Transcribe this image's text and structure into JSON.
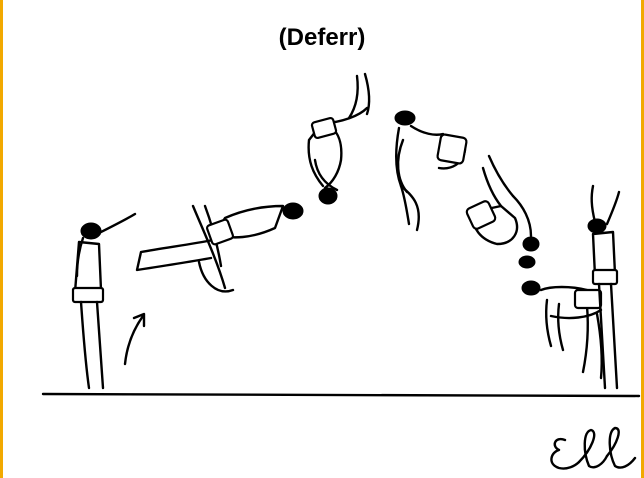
{
  "title": "(Deferr)",
  "signature": "Ell",
  "colors": {
    "frame_border": "#f2a900",
    "ink": "#000000",
    "background": "#ffffff"
  },
  "figures": [
    "standing-start",
    "backward-jump",
    "back-arch",
    "tuck-inverted",
    "tuck-upright",
    "tuck-rotating",
    "landing-handstand",
    "standing-finish"
  ]
}
